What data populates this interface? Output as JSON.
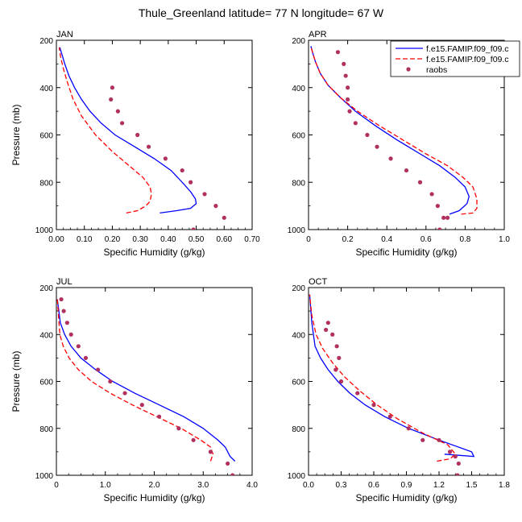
{
  "title": "Thule_Greenland  latitude= 77 N longitude= 67 W",
  "chart_data": [
    {
      "type": "line",
      "panel_label": "JAN",
      "xlabel": "Specific Humidity (g/kg)",
      "ylabel": "Pressure (mb)",
      "xlim": [
        0,
        0.7
      ],
      "ylim": [
        200,
        1000
      ],
      "y_reversed": true,
      "xticks": [
        0,
        0.1,
        0.2,
        0.3,
        0.4,
        0.5,
        0.6,
        0.7
      ],
      "xtick_labels": [
        "0.00",
        "0.10",
        "0.20",
        "0.30",
        "0.40",
        "0.50",
        "0.60",
        "0.70"
      ],
      "yticks": [
        200,
        400,
        600,
        800,
        1000
      ],
      "ytick_labels": [
        "200",
        "400",
        "600",
        "800",
        "1000"
      ],
      "legend": null,
      "series": [
        {
          "name": "f.e15.FAMIP.f09_f09.c",
          "style": "solid",
          "color": "#0000ff",
          "x": [
            0.37,
            0.43,
            0.48,
            0.5,
            0.497,
            0.48,
            0.45,
            0.41,
            0.35,
            0.28,
            0.21,
            0.16,
            0.12,
            0.09,
            0.065,
            0.045,
            0.03,
            0.02,
            0.012
          ],
          "y": [
            930,
            920,
            910,
            890,
            870,
            840,
            800,
            750,
            700,
            650,
            600,
            550,
            500,
            450,
            400,
            350,
            300,
            260,
            230
          ]
        },
        {
          "name": "f.e15.FAMIP.f09_f09.c",
          "style": "dashed",
          "color": "#ff0000",
          "x": [
            0.25,
            0.29,
            0.32,
            0.335,
            0.34,
            0.335,
            0.31,
            0.26,
            0.2,
            0.14,
            0.09,
            0.06,
            0.04,
            0.025,
            0.015,
            0.01
          ],
          "y": [
            930,
            920,
            900,
            880,
            850,
            820,
            780,
            730,
            670,
            600,
            520,
            450,
            380,
            320,
            270,
            230
          ]
        },
        {
          "name": "raobs",
          "style": "markers",
          "color": "#b03060",
          "x": [
            0.2,
            0.195,
            0.22,
            0.235,
            0.29,
            0.33,
            0.39,
            0.45,
            0.48,
            0.53,
            0.57,
            0.6,
            0.49
          ],
          "y": [
            400,
            450,
            500,
            550,
            600,
            650,
            700,
            750,
            800,
            850,
            900,
            950,
            1000
          ]
        }
      ]
    },
    {
      "type": "line",
      "panel_label": "APR",
      "xlabel": "Specific Humidity (g/kg)",
      "ylabel": "",
      "xlim": [
        0,
        1.0
      ],
      "ylim": [
        200,
        1000
      ],
      "y_reversed": true,
      "xticks": [
        0,
        0.2,
        0.4,
        0.6,
        0.8,
        1.0
      ],
      "xtick_labels": [
        "0",
        "0.2",
        "0.4",
        "0.6",
        "0.8",
        "1.0"
      ],
      "yticks": [
        200,
        400,
        600,
        800,
        1000
      ],
      "ytick_labels": [
        "200",
        "400",
        "600",
        "800",
        "1000"
      ],
      "legend": "top-right",
      "series": [
        {
          "name": "f.e15.FAMIP.f09_f09.c",
          "style": "solid",
          "color": "#0000ff",
          "x": [
            0.72,
            0.77,
            0.81,
            0.82,
            0.8,
            0.75,
            0.67,
            0.57,
            0.45,
            0.34,
            0.24,
            0.16,
            0.1,
            0.06,
            0.035,
            0.02,
            0.012
          ],
          "y": [
            935,
            920,
            890,
            860,
            820,
            780,
            730,
            680,
            620,
            560,
            500,
            440,
            390,
            340,
            290,
            250,
            225
          ]
        },
        {
          "name": "f.e15.FAMIP.f09_f09.c",
          "style": "dashed",
          "color": "#ff0000",
          "x": [
            0.78,
            0.84,
            0.86,
            0.86,
            0.84,
            0.79,
            0.71,
            0.6,
            0.48,
            0.36,
            0.25,
            0.16,
            0.1,
            0.06,
            0.035,
            0.02,
            0.012
          ],
          "y": [
            935,
            930,
            910,
            870,
            820,
            780,
            730,
            680,
            620,
            560,
            500,
            440,
            390,
            340,
            290,
            250,
            225
          ]
        },
        {
          "name": "raobs",
          "style": "markers",
          "color": "#b03060",
          "x": [
            0.15,
            0.18,
            0.19,
            0.2,
            0.2,
            0.21,
            0.24,
            0.3,
            0.35,
            0.42,
            0.5,
            0.57,
            0.63,
            0.66,
            0.71,
            0.69,
            0.67
          ],
          "y": [
            250,
            300,
            350,
            400,
            450,
            500,
            550,
            600,
            650,
            700,
            750,
            800,
            850,
            900,
            950,
            950,
            1000
          ]
        }
      ]
    },
    {
      "type": "line",
      "panel_label": "JUL",
      "xlabel": "Specific Humidity (g/kg)",
      "ylabel": "Pressure (mb)",
      "xlim": [
        0,
        4.0
      ],
      "ylim": [
        200,
        1000
      ],
      "y_reversed": true,
      "xticks": [
        0,
        1.0,
        2.0,
        3.0,
        4.0
      ],
      "xtick_labels": [
        "0",
        "1.0",
        "2.0",
        "3.0",
        "4.0"
      ],
      "yticks": [
        200,
        400,
        600,
        800,
        1000
      ],
      "ytick_labels": [
        "200",
        "400",
        "600",
        "800",
        "1000"
      ],
      "legend": null,
      "series": [
        {
          "name": "f.e15.FAMIP.f09_f09.c",
          "style": "solid",
          "color": "#0000ff",
          "x": [
            3.65,
            3.55,
            3.45,
            3.3,
            3.0,
            2.6,
            2.1,
            1.6,
            1.15,
            0.8,
            0.5,
            0.3,
            0.17,
            0.08,
            0.02
          ],
          "y": [
            940,
            920,
            880,
            850,
            800,
            750,
            700,
            650,
            600,
            550,
            500,
            450,
            400,
            350,
            250
          ]
        },
        {
          "name": "f.e15.FAMIP.f09_f09.c",
          "style": "dashed",
          "color": "#ff0000",
          "x": [
            3.15,
            3.2,
            3.15,
            2.95,
            2.55,
            2.05,
            1.55,
            1.1,
            0.72,
            0.45,
            0.26,
            0.14,
            0.07,
            0.02
          ],
          "y": [
            940,
            910,
            880,
            850,
            800,
            750,
            700,
            650,
            600,
            550,
            500,
            450,
            400,
            250
          ]
        },
        {
          "name": "raobs",
          "style": "markers",
          "color": "#b03060",
          "x": [
            0.1,
            0.15,
            0.22,
            0.3,
            0.45,
            0.6,
            0.85,
            1.1,
            1.4,
            1.75,
            2.1,
            2.5,
            2.8,
            3.15,
            3.5,
            3.6
          ],
          "y": [
            250,
            300,
            350,
            400,
            450,
            500,
            550,
            600,
            650,
            700,
            750,
            800,
            850,
            900,
            950,
            1000
          ]
        }
      ]
    },
    {
      "type": "line",
      "panel_label": "OCT",
      "xlabel": "Specific Humidity (g/kg)",
      "ylabel": "",
      "xlim": [
        0,
        1.8
      ],
      "ylim": [
        200,
        1000
      ],
      "y_reversed": true,
      "xticks": [
        0,
        0.3,
        0.6,
        0.9,
        1.2,
        1.5,
        1.8
      ],
      "xtick_labels": [
        "0.0",
        "0.3",
        "0.6",
        "0.9",
        "1.2",
        "1.5",
        "1.8"
      ],
      "yticks": [
        200,
        400,
        600,
        800,
        1000
      ],
      "ytick_labels": [
        "200",
        "400",
        "600",
        "800",
        "1000"
      ],
      "legend": null,
      "series": [
        {
          "name": "f.e15.FAMIP.f09_f09.c",
          "style": "solid",
          "color": "#0000ff",
          "x": [
            1.25,
            1.52,
            1.5,
            1.2,
            0.92,
            0.7,
            0.52,
            0.38,
            0.27,
            0.18,
            0.11,
            0.06,
            0.03,
            0.01
          ],
          "y": [
            910,
            920,
            900,
            850,
            800,
            750,
            700,
            650,
            600,
            550,
            500,
            450,
            350,
            230
          ]
        },
        {
          "name": "f.e15.FAMIP.f09_f09.c",
          "style": "dashed",
          "color": "#ff0000",
          "x": [
            1.18,
            1.3,
            1.35,
            1.28,
            1.05,
            0.82,
            0.63,
            0.47,
            0.33,
            0.22,
            0.13,
            0.07,
            0.03,
            0.01
          ],
          "y": [
            940,
            930,
            910,
            870,
            820,
            760,
            700,
            640,
            580,
            520,
            460,
            400,
            320,
            230
          ]
        },
        {
          "name": "raobs",
          "style": "markers",
          "color": "#b03060",
          "x": [
            0.18,
            0.16,
            0.22,
            0.26,
            0.28,
            0.25,
            0.3,
            0.45,
            0.6,
            0.75,
            0.92,
            1.05,
            1.2,
            1.3,
            1.35,
            1.38,
            1.37
          ],
          "y": [
            350,
            380,
            400,
            450,
            500,
            550,
            600,
            650,
            700,
            750,
            800,
            850,
            850,
            900,
            920,
            950,
            1000
          ]
        }
      ]
    }
  ]
}
